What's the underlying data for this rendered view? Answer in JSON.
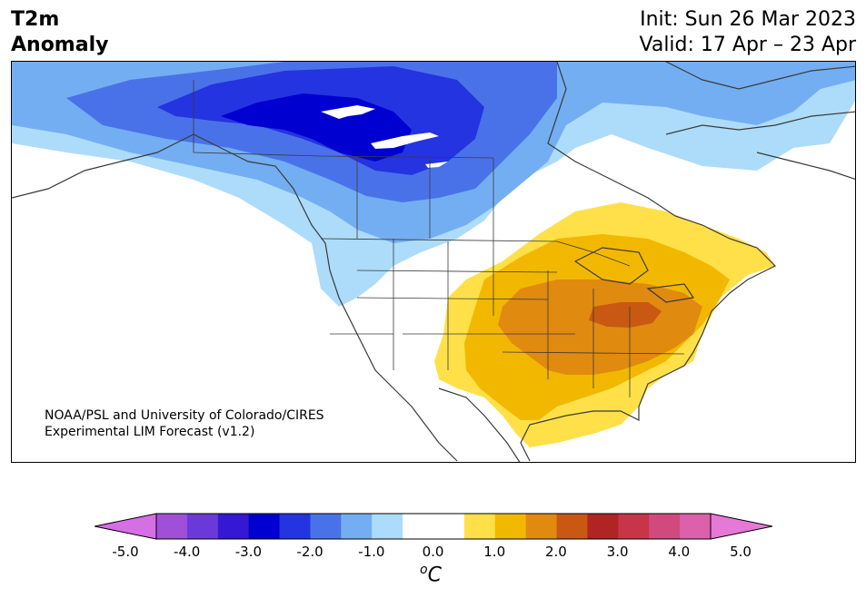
{
  "title": {
    "variable": "T2m",
    "subtitle": "Anomaly",
    "init": "Init: Sun 26 Mar 2023",
    "valid": "Valid: 17 Apr – 23 Apr"
  },
  "credit": {
    "line1": "NOAA/PSL and University of Colorado/CIRES",
    "line2": "Experimental LIM Forecast (v1.2)"
  },
  "colorbar": {
    "ticks": [
      "-5.0",
      "-4.0",
      "-3.0",
      "-2.0",
      "-1.0",
      "0.0",
      "1.0",
      "2.0",
      "3.0",
      "4.0",
      "5.0"
    ],
    "unit_super": "o",
    "unit": "C",
    "colors": [
      "#d66ee6",
      "#a050d8",
      "#6a3ad8",
      "#3418d4",
      "#0000d0",
      "#2434e0",
      "#4a72e8",
      "#74aef2",
      "#acdcfa",
      "#ffffff",
      "#ffffff",
      "#ffe048",
      "#f2b800",
      "#e08a10",
      "#c85812",
      "#b02424",
      "#c83448",
      "#d04a7e",
      "#dc60aa",
      "#e678d8"
    ]
  },
  "colors": {
    "land_outline": "#3a3a3a",
    "cold_max": "#0000d0",
    "warm_max": "#c85812"
  }
}
